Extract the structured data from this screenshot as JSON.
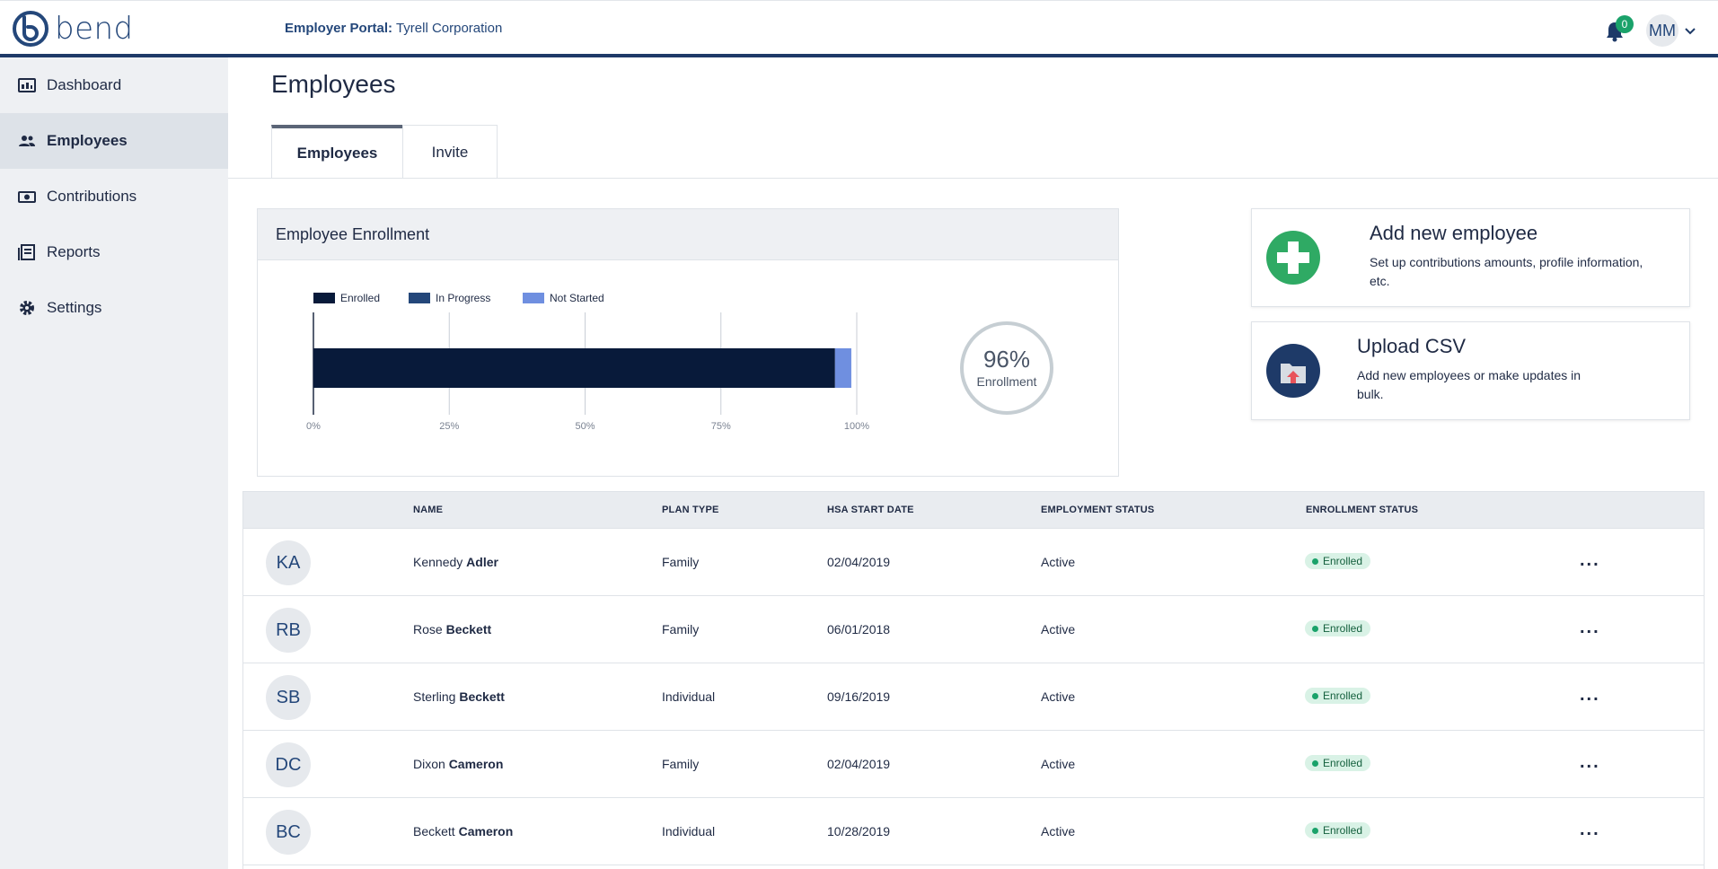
{
  "brand": {
    "name": "bend",
    "color": "#24477a"
  },
  "header": {
    "portal_label": "Employer Portal:",
    "company": "Tyrell Corporation",
    "notifications_count": "0",
    "user_initials": "MM"
  },
  "sidebar": {
    "items": [
      {
        "label": "Dashboard",
        "icon": "dashboard-icon"
      },
      {
        "label": "Employees",
        "icon": "people-icon"
      },
      {
        "label": "Contributions",
        "icon": "money-icon"
      },
      {
        "label": "Reports",
        "icon": "reports-icon"
      },
      {
        "label": "Settings",
        "icon": "gear-icon"
      }
    ],
    "active": "Employees"
  },
  "main": {
    "title": "Employees",
    "tabs": [
      {
        "label": "Employees"
      },
      {
        "label": "Invite"
      }
    ]
  },
  "enrollment": {
    "title": "Employee Enrollment",
    "percent_label": "96%",
    "sub_label": "Enrollment"
  },
  "chart_data": {
    "type": "bar",
    "orientation": "horizontal",
    "stacked": true,
    "series": [
      {
        "name": "Enrolled",
        "values": [
          96
        ],
        "color": "#081a3a"
      },
      {
        "name": "In Progress",
        "values": [
          0
        ],
        "color": "#24477a"
      },
      {
        "name": "Not Started",
        "values": [
          3
        ],
        "color": "#6f8fe0"
      }
    ],
    "xticks": [
      "0%",
      "25%",
      "50%",
      "75%",
      "100%"
    ],
    "xlim": [
      0,
      100
    ],
    "legend": "top-left",
    "grid": true
  },
  "actions": [
    {
      "title": "Add new employee",
      "desc": "Set up contributions amounts, profile information, etc.",
      "icon": "plus-icon",
      "color": "#2faa64"
    },
    {
      "title": "Upload CSV",
      "desc": "Add new employees or make updates in bulk.",
      "icon": "upload-folder-icon",
      "color": "#1e3a68"
    }
  ],
  "table": {
    "headers": [
      "NAME",
      "PLAN TYPE",
      "HSA START DATE",
      "EMPLOYMENT STATUS",
      "ENROLLMENT STATUS"
    ],
    "rows": [
      {
        "initials": "KA",
        "first": "Kennedy",
        "last": "Adler",
        "plan": "Family",
        "start": "02/04/2019",
        "employment": "Active",
        "enrollment": "Enrolled",
        "menu": "..."
      },
      {
        "initials": "RB",
        "first": "Rose",
        "last": "Beckett",
        "plan": "Family",
        "start": "06/01/2018",
        "employment": "Active",
        "enrollment": "Enrolled",
        "menu": "..."
      },
      {
        "initials": "SB",
        "first": "Sterling",
        "last": "Beckett",
        "plan": "Individual",
        "start": "09/16/2019",
        "employment": "Active",
        "enrollment": "Enrolled",
        "menu": "..."
      },
      {
        "initials": "DC",
        "first": "Dixon",
        "last": "Cameron",
        "plan": "Family",
        "start": "02/04/2019",
        "employment": "Active",
        "enrollment": "Enrolled",
        "menu": "..."
      },
      {
        "initials": "BC",
        "first": "Beckett",
        "last": "Cameron",
        "plan": "Individual",
        "start": "10/28/2019",
        "employment": "Active",
        "enrollment": "Enrolled",
        "menu": "..."
      }
    ]
  }
}
